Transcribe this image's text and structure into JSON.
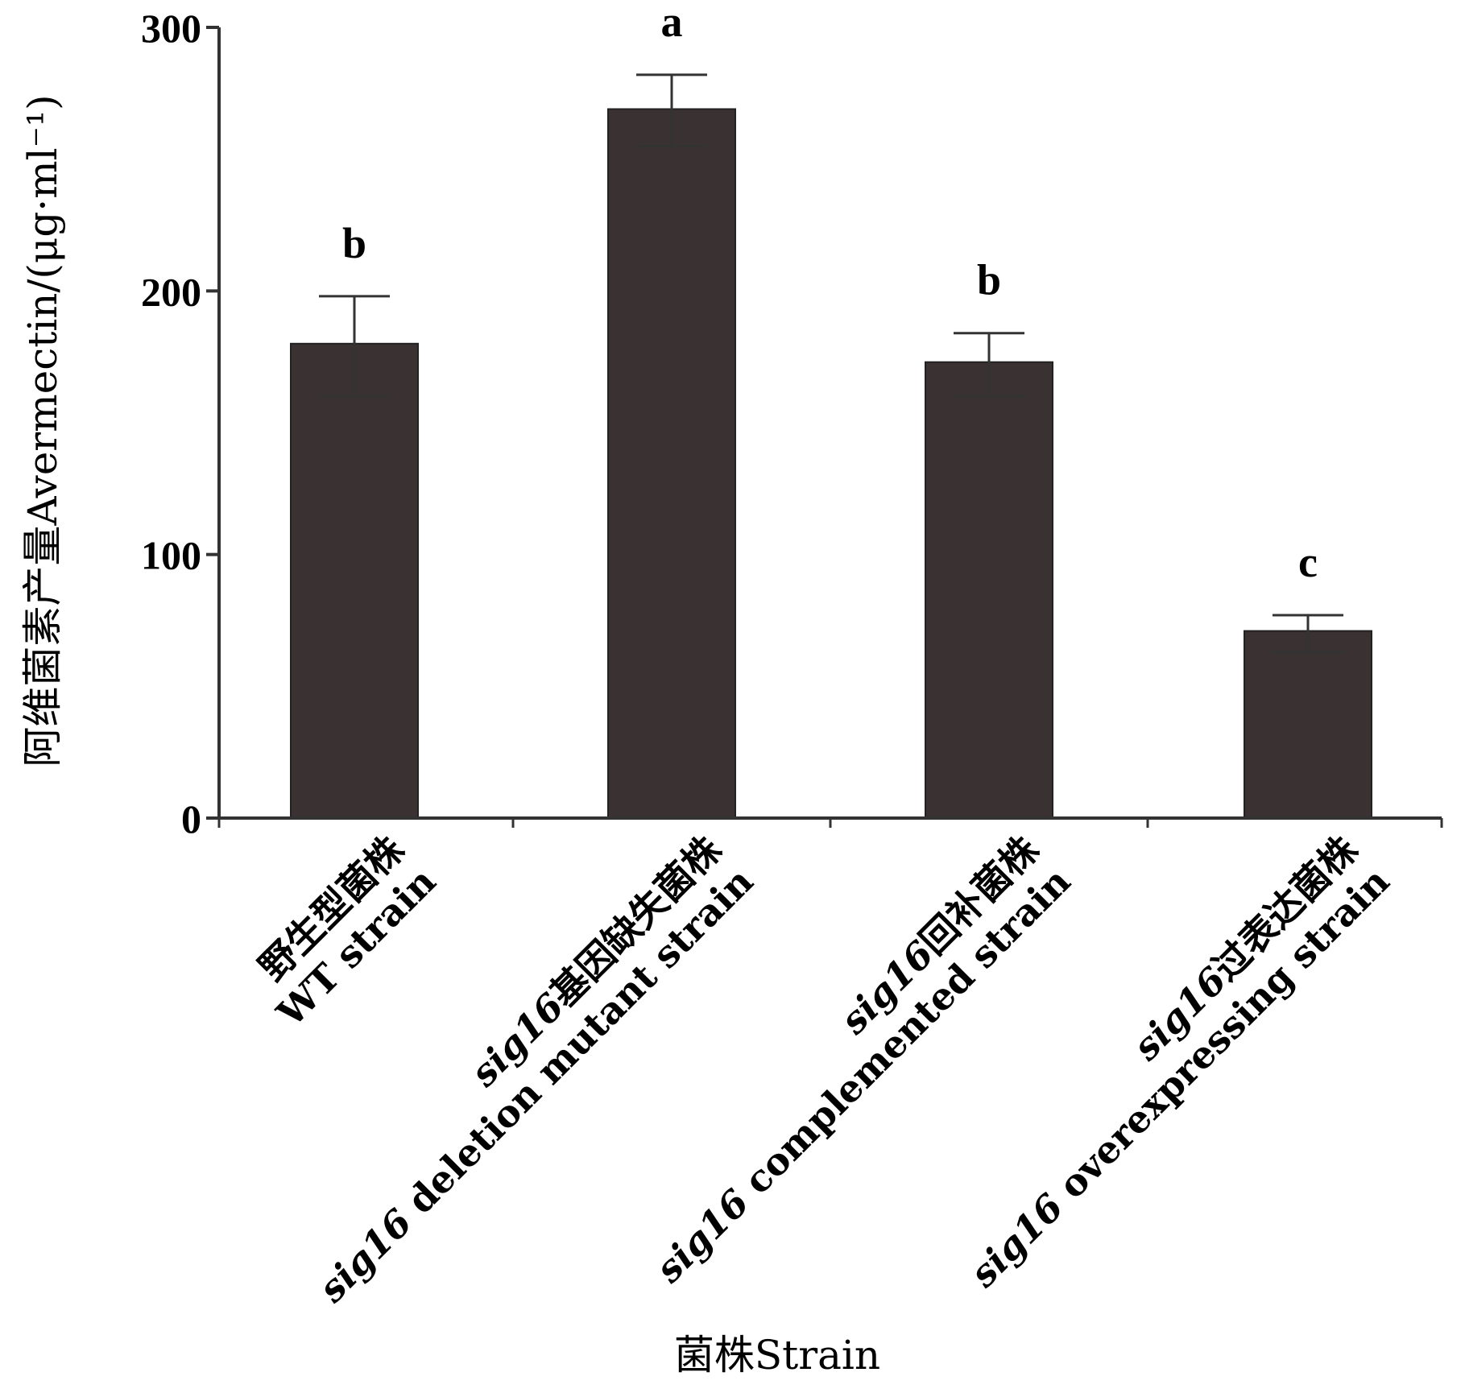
{
  "chart_data": {
    "type": "bar",
    "categories": [
      {
        "line1_pre": "",
        "line1_main": "野生型菌株",
        "line2_pre": "",
        "line2_main": "WT strain"
      },
      {
        "line1_pre": "sig16",
        "line1_main": "基因缺失菌株",
        "line2_pre": "sig16",
        "line2_main": " deletion mutant strain"
      },
      {
        "line1_pre": "sig16",
        "line1_main": "回补菌株",
        "line2_pre": "sig16",
        "line2_main": " complemented strain"
      },
      {
        "line1_pre": "sig16",
        "line1_main": "过表达菌株",
        "line2_pre": "sig16",
        "line2_main": " overexpressing strain"
      }
    ],
    "values": [
      180,
      269,
      173,
      71
    ],
    "error_low": [
      160,
      255,
      160,
      63
    ],
    "error_high": [
      198,
      282,
      184,
      77
    ],
    "significance": [
      "b",
      "a",
      "b",
      "c"
    ],
    "bar_color": "#3a3232",
    "ylim": [
      0,
      300
    ],
    "yticks": [
      0,
      100,
      200,
      300
    ],
    "ylabel": "阿维菌素产量Avermectin/(μg·ml⁻¹)",
    "xlabel": "菌株Strain",
    "grid": false
  }
}
